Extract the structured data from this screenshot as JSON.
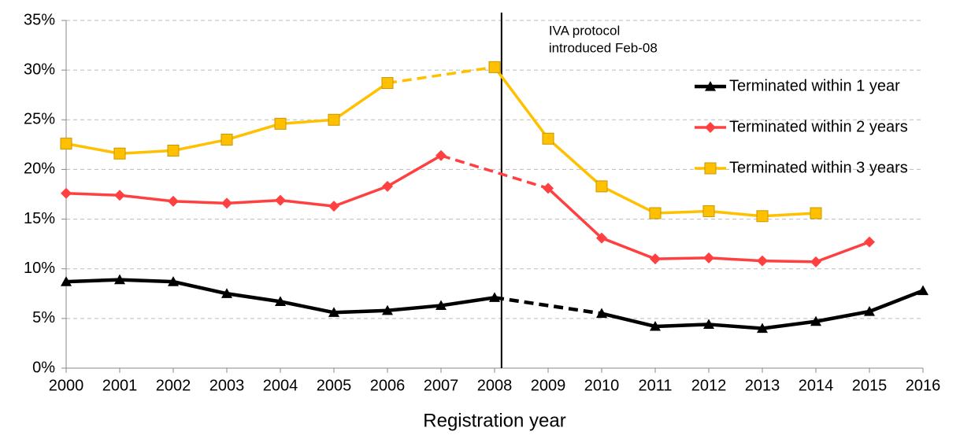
{
  "chart_data": {
    "type": "line",
    "x": [
      2000,
      2001,
      2002,
      2003,
      2004,
      2005,
      2006,
      2007,
      2008,
      2009,
      2010,
      2011,
      2012,
      2013,
      2014,
      2015,
      2016
    ],
    "xlim": [
      2000,
      2016
    ],
    "xticks": [
      2000,
      2001,
      2002,
      2003,
      2004,
      2005,
      2006,
      2007,
      2008,
      2009,
      2010,
      2011,
      2012,
      2013,
      2014,
      2015,
      2016
    ],
    "xlabel": "Registration year",
    "ylim": [
      0,
      35
    ],
    "yticks": [
      {
        "value": 0,
        "label": "0%"
      },
      {
        "value": 5,
        "label": "5%"
      },
      {
        "value": 10,
        "label": "10%"
      },
      {
        "value": 15,
        "label": "15%"
      },
      {
        "value": 20,
        "label": "20%"
      },
      {
        "value": 25,
        "label": "25%"
      },
      {
        "value": 30,
        "label": "30%"
      },
      {
        "value": 35,
        "label": "35%"
      }
    ],
    "grid": true,
    "gaps": "dashed",
    "legend": "right",
    "series": [
      {
        "name": "Terminated within 1 year",
        "color": "#000000",
        "marker": "triangle",
        "values": [
          8.7,
          8.9,
          8.7,
          7.5,
          6.7,
          5.6,
          5.8,
          6.3,
          7.1,
          null,
          5.5,
          4.2,
          4.4,
          4.0,
          4.7,
          5.7,
          7.8
        ]
      },
      {
        "name": "Terminated within 2 years",
        "color": "#ff4040",
        "marker": "diamond",
        "values": [
          17.6,
          17.4,
          16.8,
          16.6,
          16.9,
          16.3,
          18.3,
          21.4,
          null,
          18.1,
          13.1,
          11.0,
          11.1,
          10.8,
          10.7,
          12.7,
          null
        ]
      },
      {
        "name": "Terminated within 3 years",
        "color": "#ffc000",
        "marker": "square",
        "values": [
          22.6,
          21.6,
          21.9,
          23.0,
          24.6,
          25.0,
          28.7,
          null,
          30.3,
          23.1,
          18.3,
          15.6,
          15.8,
          15.3,
          15.6,
          null,
          null
        ]
      }
    ],
    "annotation": {
      "lines": [
        "IVA protocol",
        "introduced Feb-08"
      ],
      "x": 2008.13
    }
  }
}
